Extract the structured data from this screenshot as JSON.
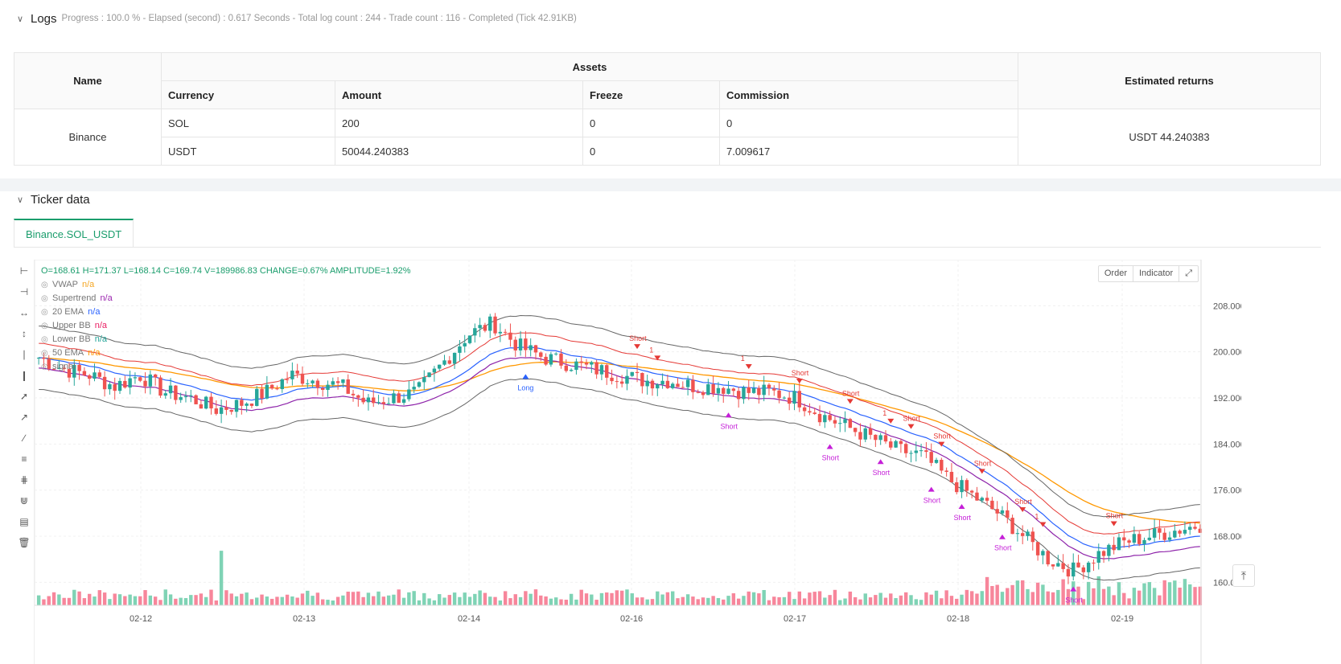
{
  "logs": {
    "title": "Logs",
    "summary": "Progress : 100.0 % - Elapsed (second) : 0.617  Seconds - Total log count : 244 - Trade count : 116 - Completed (Tick 42.91KB)"
  },
  "assets_table": {
    "col_name": "Name",
    "col_assets": "Assets",
    "col_returns": "Estimated returns",
    "sub_currency": "Currency",
    "sub_amount": "Amount",
    "sub_freeze": "Freeze",
    "sub_commission": "Commission",
    "exchange": "Binance",
    "rows": [
      {
        "currency": "SOL",
        "amount": "200",
        "freeze": "0",
        "commission": "0"
      },
      {
        "currency": "USDT",
        "amount": "50044.240383",
        "freeze": "0",
        "commission": "7.009617"
      }
    ],
    "returns": "USDT 44.240383"
  },
  "ticker": {
    "title": "Ticker data",
    "tab": "Binance.SOL_USDT",
    "ohlc": "O=168.61  H=171.37  L=168.14  C=169.74  V=189986.83  CHANGE=0.67%  AMPLITUDE=1.92%",
    "legend": [
      {
        "name": "VWAP",
        "value": "n/a",
        "color": "#f5a623"
      },
      {
        "name": "Supertrend",
        "value": "n/a",
        "color": "#9c27b0"
      },
      {
        "name": "20 EMA",
        "value": "n/a",
        "color": "#2962ff"
      },
      {
        "name": "Upper BB",
        "value": "n/a",
        "color": "#e91e63"
      },
      {
        "name": "Lower BB",
        "value": "n/a",
        "color": "#26a69a"
      },
      {
        "name": "50 EMA",
        "value": "n/a",
        "color": "#ff9800"
      },
      {
        "name": "signal",
        "value": "",
        "color": "#777777"
      }
    ],
    "buttons": [
      "Order",
      "Indicator"
    ]
  },
  "chart_data": {
    "type": "candlestick",
    "symbol": "Binance.SOL_USDT",
    "y_ticks": [
      "208.000",
      "200.000",
      "192.000",
      "184.000",
      "176.000",
      "168.000",
      "160.000"
    ],
    "x_ticks": [
      "02-12",
      "02-13",
      "02-14",
      "02-16",
      "02-17",
      "02-18",
      "02-19"
    ],
    "ylim": [
      156,
      216
    ],
    "series_anchor_prices": [
      199,
      197,
      196,
      194,
      196,
      193,
      192,
      190,
      191,
      193,
      196,
      195,
      194,
      191,
      192,
      193,
      198,
      203,
      205,
      201,
      199,
      198,
      197,
      196,
      195,
      195,
      194,
      194,
      193,
      193,
      192,
      189,
      187,
      185,
      183,
      182,
      178,
      175,
      172,
      168,
      164,
      162,
      165,
      167,
      168,
      169,
      170
    ],
    "signal_labels": [
      "Long",
      "1",
      "Short"
    ]
  }
}
